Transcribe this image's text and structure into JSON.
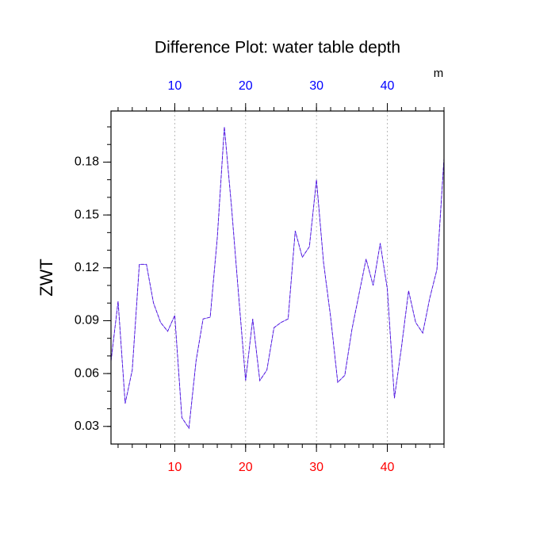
{
  "chart_data": {
    "type": "line",
    "title": "Difference Plot: water table depth",
    "ylabel": "ZWT",
    "x2label": "m",
    "x": [
      1,
      2,
      3,
      4,
      5,
      6,
      7,
      8,
      9,
      10,
      11,
      12,
      13,
      14,
      15,
      16,
      17,
      18,
      19,
      20,
      21,
      22,
      23,
      24,
      25,
      26,
      27,
      28,
      29,
      30,
      31,
      32,
      33,
      34,
      35,
      36,
      37,
      38,
      39,
      40,
      41,
      42,
      43,
      44,
      45,
      46,
      47,
      48
    ],
    "series": [
      {
        "color": "#5a14d8",
        "values": [
          0.067,
          0.101,
          0.043,
          0.062,
          0.122,
          0.122,
          0.1,
          0.089,
          0.084,
          0.093,
          0.035,
          0.029,
          0.067,
          0.091,
          0.092,
          0.137,
          0.2,
          0.155,
          0.105,
          0.056,
          0.091,
          0.056,
          0.062,
          0.086,
          0.089,
          0.091,
          0.141,
          0.126,
          0.132,
          0.17,
          0.123,
          0.092,
          0.055,
          0.059,
          0.085,
          0.105,
          0.125,
          0.11,
          0.134,
          0.108,
          0.046,
          0.075,
          0.107,
          0.089,
          0.083,
          0.103,
          0.119,
          0.182
        ]
      }
    ],
    "xlim": [
      1,
      48
    ],
    "xticks": [
      10,
      20,
      30,
      40
    ],
    "ylim": [
      0.02,
      0.209
    ],
    "yticks": [
      0.03,
      0.06,
      0.09,
      0.12,
      0.15,
      0.18
    ],
    "xtick_color": "#ff0000",
    "x2tick_color": "#0000ff",
    "grid": "x"
  }
}
